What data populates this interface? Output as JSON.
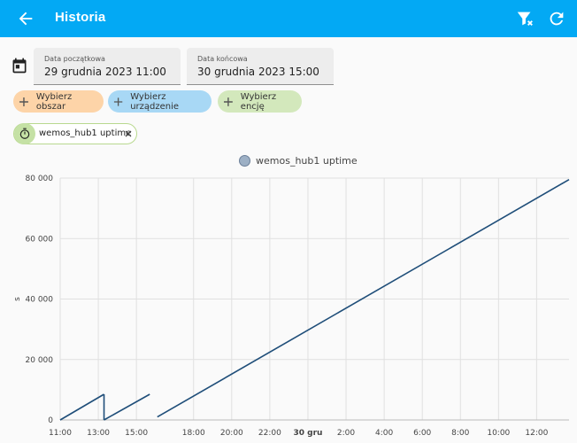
{
  "header": {
    "title": "Historia",
    "back_icon": "arrow-left-icon",
    "actions": [
      {
        "name": "clear-filter-button",
        "icon": "filter-remove-icon"
      },
      {
        "name": "refresh-button",
        "icon": "refresh-icon"
      }
    ]
  },
  "date_range": {
    "icon": "calendar-icon",
    "start": {
      "label": "Data początkowa",
      "value": "29 grudnia 2023 11:00"
    },
    "end": {
      "label": "Data końcowa",
      "value": "30 grudnia 2023 15:00"
    }
  },
  "target_chips": [
    {
      "label": "Wybierz obszar",
      "color": "#fdd4a8"
    },
    {
      "label": "Wybierz urządzenie",
      "color": "#a8d8f5"
    },
    {
      "label": "Wybierz encję",
      "color": "#d3e8bc"
    }
  ],
  "entity_chip": {
    "label": "wemos_hub1 uptime",
    "icon": "timer-icon",
    "remove_icon": "close-icon"
  },
  "chart_data": {
    "type": "line",
    "legend": "wemos_hub1 uptime",
    "legend_position": "top",
    "ylabel": "s",
    "ylim": [
      0,
      80000
    ],
    "y_ticks": [
      "0",
      "20 000",
      "40 000",
      "60 000",
      "80 000"
    ],
    "x_ticks": [
      "11:00",
      "13:00",
      "15:00",
      "18:00",
      "20:00",
      "22:00",
      "30 gru",
      "2:00",
      "4:00",
      "6:00",
      "8:00",
      "10:00",
      "12:00"
    ],
    "x_tick_hours": [
      0,
      2,
      4,
      7,
      9,
      11,
      13,
      15,
      17,
      19,
      21,
      23,
      25
    ],
    "x_range_hours": [
      0,
      26.7
    ],
    "grid": true,
    "color": "#1f4e79",
    "segments": [
      [
        [
          0,
          0
        ],
        [
          2.3,
          8500
        ]
      ],
      [
        [
          2.3,
          0
        ],
        [
          4.7,
          8500
        ]
      ],
      [
        [
          5.1,
          1000
        ],
        [
          26.7,
          79500
        ]
      ]
    ]
  }
}
